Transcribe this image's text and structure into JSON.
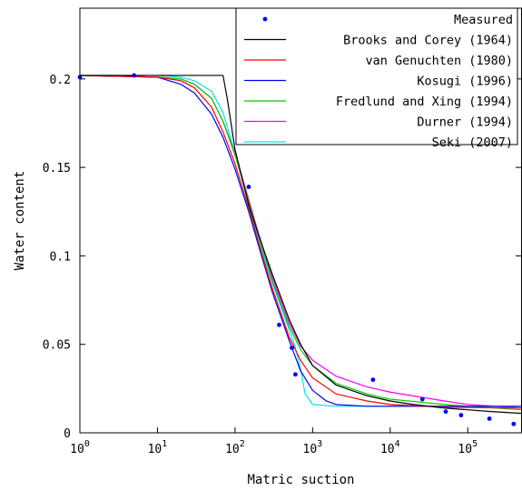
{
  "chart_data": {
    "type": "line",
    "xlabel": "Matric suction",
    "ylabel": "Water content",
    "xscale": "log",
    "xlim": [
      1,
      500000
    ],
    "ylim": [
      0,
      0.24
    ],
    "grid": false,
    "legend_position": "top-right",
    "x_ticks": [
      {
        "value": 1,
        "base": "10",
        "exp": "0"
      },
      {
        "value": 10,
        "base": "10",
        "exp": "1"
      },
      {
        "value": 100,
        "base": "10",
        "exp": "2"
      },
      {
        "value": 1000,
        "base": "10",
        "exp": "3"
      },
      {
        "value": 10000,
        "base": "10",
        "exp": "4"
      },
      {
        "value": 100000,
        "base": "10",
        "exp": "5"
      }
    ],
    "y_ticks": [
      {
        "value": 0,
        "label": "0"
      },
      {
        "value": 0.05,
        "label": "0.05"
      },
      {
        "value": 0.1,
        "label": "0.1"
      },
      {
        "value": 0.15,
        "label": "0.15"
      },
      {
        "value": 0.2,
        "label": "0.2"
      }
    ],
    "measured": {
      "name": "Measured",
      "color": "#0000ff",
      "points": [
        [
          1,
          0.201
        ],
        [
          5,
          0.202
        ],
        [
          150,
          0.139
        ],
        [
          370,
          0.061
        ],
        [
          540,
          0.048
        ],
        [
          600,
          0.033
        ],
        [
          6000,
          0.03
        ],
        [
          26000,
          0.019
        ],
        [
          52000,
          0.012
        ],
        [
          82000,
          0.01
        ],
        [
          190000,
          0.008
        ],
        [
          390000,
          0.005
        ]
      ]
    },
    "series": [
      {
        "name": "Brooks and Corey (1964)",
        "color": "#000000",
        "points": [
          [
            1,
            0.202
          ],
          [
            10,
            0.202
          ],
          [
            50,
            0.202
          ],
          [
            70,
            0.202
          ],
          [
            80,
            0.188
          ],
          [
            100,
            0.16
          ],
          [
            150,
            0.129
          ],
          [
            200,
            0.112
          ],
          [
            300,
            0.09
          ],
          [
            500,
            0.064
          ],
          [
            700,
            0.05
          ],
          [
            1000,
            0.038
          ],
          [
            2000,
            0.027
          ],
          [
            5000,
            0.021
          ],
          [
            10000,
            0.018
          ],
          [
            20000,
            0.016
          ],
          [
            50000,
            0.014
          ],
          [
            100000,
            0.013
          ],
          [
            200000,
            0.012
          ],
          [
            500000,
            0.011
          ]
        ]
      },
      {
        "name": "van Genuchten (1980)",
        "color": "#ff0000",
        "points": [
          [
            1,
            0.202
          ],
          [
            10,
            0.201
          ],
          [
            20,
            0.199
          ],
          [
            30,
            0.195
          ],
          [
            50,
            0.184
          ],
          [
            70,
            0.17
          ],
          [
            100,
            0.152
          ],
          [
            150,
            0.127
          ],
          [
            200,
            0.108
          ],
          [
            300,
            0.082
          ],
          [
            500,
            0.054
          ],
          [
            700,
            0.041
          ],
          [
            1000,
            0.031
          ],
          [
            2000,
            0.022
          ],
          [
            5000,
            0.018
          ],
          [
            10000,
            0.016
          ],
          [
            50000,
            0.0145
          ],
          [
            100000,
            0.0143
          ],
          [
            500000,
            0.014
          ]
        ]
      },
      {
        "name": "Kosugi (1996)",
        "color": "#0000ff",
        "points": [
          [
            1,
            0.202
          ],
          [
            10,
            0.201
          ],
          [
            20,
            0.197
          ],
          [
            30,
            0.192
          ],
          [
            50,
            0.18
          ],
          [
            70,
            0.167
          ],
          [
            100,
            0.149
          ],
          [
            150,
            0.125
          ],
          [
            200,
            0.106
          ],
          [
            300,
            0.08
          ],
          [
            500,
            0.052
          ],
          [
            700,
            0.035
          ],
          [
            1000,
            0.024
          ],
          [
            1500,
            0.018
          ],
          [
            2000,
            0.016
          ],
          [
            5000,
            0.015
          ],
          [
            100000,
            0.015
          ],
          [
            500000,
            0.015
          ]
        ]
      },
      {
        "name": "Fredlund and Xing (1994)",
        "color": "#00cc00",
        "points": [
          [
            1,
            0.202
          ],
          [
            10,
            0.201
          ],
          [
            20,
            0.2
          ],
          [
            30,
            0.197
          ],
          [
            50,
            0.189
          ],
          [
            70,
            0.176
          ],
          [
            100,
            0.157
          ],
          [
            150,
            0.131
          ],
          [
            200,
            0.112
          ],
          [
            300,
            0.086
          ],
          [
            500,
            0.06
          ],
          [
            700,
            0.047
          ],
          [
            1000,
            0.038
          ],
          [
            2000,
            0.028
          ],
          [
            5000,
            0.022
          ],
          [
            10000,
            0.019
          ],
          [
            50000,
            0.016
          ],
          [
            100000,
            0.015
          ],
          [
            500000,
            0.013
          ]
        ]
      },
      {
        "name": "Durner (1994)",
        "color": "#ff00ff",
        "points": [
          [
            1,
            0.202
          ],
          [
            10,
            0.201
          ],
          [
            20,
            0.2
          ],
          [
            30,
            0.197
          ],
          [
            50,
            0.189
          ],
          [
            70,
            0.176
          ],
          [
            100,
            0.158
          ],
          [
            150,
            0.132
          ],
          [
            200,
            0.113
          ],
          [
            300,
            0.088
          ],
          [
            500,
            0.062
          ],
          [
            700,
            0.049
          ],
          [
            1000,
            0.041
          ],
          [
            2000,
            0.032
          ],
          [
            5000,
            0.026
          ],
          [
            10000,
            0.023
          ],
          [
            50000,
            0.018
          ],
          [
            100000,
            0.016
          ],
          [
            500000,
            0.014
          ]
        ]
      },
      {
        "name": "Seki (2007)",
        "color": "#00e6e6",
        "points": [
          [
            1,
            0.202
          ],
          [
            10,
            0.202
          ],
          [
            20,
            0.201
          ],
          [
            30,
            0.199
          ],
          [
            50,
            0.193
          ],
          [
            70,
            0.181
          ],
          [
            100,
            0.158
          ],
          [
            150,
            0.129
          ],
          [
            200,
            0.11
          ],
          [
            300,
            0.085
          ],
          [
            500,
            0.058
          ],
          [
            600,
            0.048
          ],
          [
            700,
            0.036
          ],
          [
            800,
            0.022
          ],
          [
            1000,
            0.016
          ],
          [
            2000,
            0.015
          ],
          [
            100000,
            0.015
          ],
          [
            500000,
            0.015
          ]
        ]
      }
    ]
  }
}
